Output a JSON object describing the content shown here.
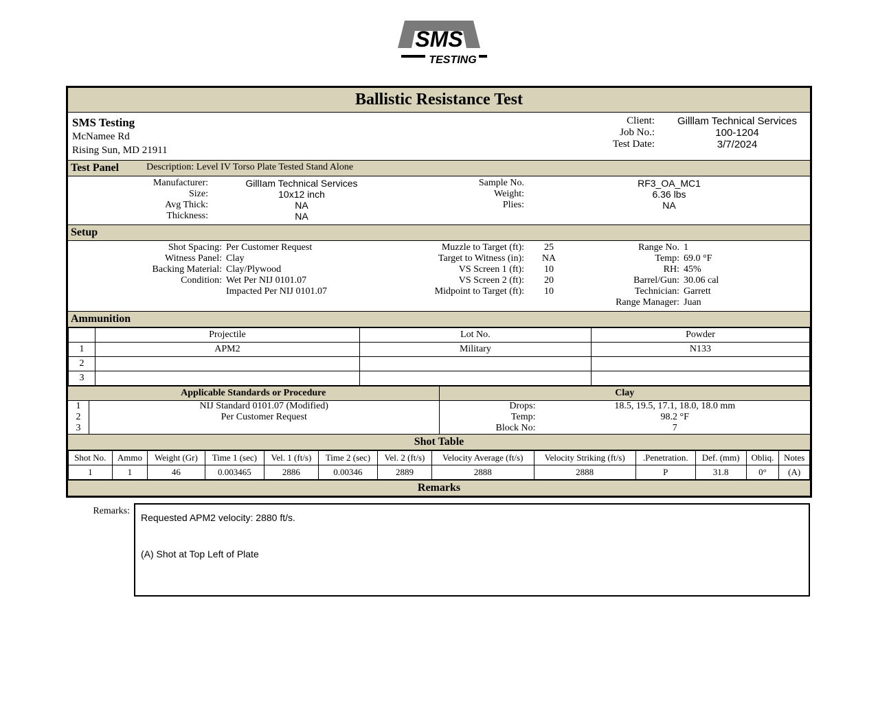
{
  "title": "Ballistic Resistance Test",
  "logo_text_top": "SMS",
  "logo_text_bottom": "TESTING",
  "header": {
    "company": "SMS Testing",
    "addr1": "McNamee Rd",
    "addr2": "Rising Sun, MD 21911",
    "client_lbl": "Client:",
    "client": "Gilllam Technical Services",
    "jobno_lbl": "Job No.:",
    "jobno": "100-1204",
    "date_lbl": "Test Date:",
    "date": "3/7/2024"
  },
  "test_panel": {
    "heading": "Test Panel",
    "desc_lbl": "Description:",
    "desc": "Level IV Torso Plate Tested Stand Alone",
    "rows": [
      {
        "l": "Manufacturer:",
        "lv": "GillIam Technical Services",
        "r": "Sample No.",
        "rv": "RF3_OA_MC1"
      },
      {
        "l": "Size:",
        "lv": "10x12 inch",
        "r": "Weight:",
        "rv": "6.36 lbs"
      },
      {
        "l": "Avg Thick:",
        "lv": "NA",
        "r": "Plies:",
        "rv": "NA"
      },
      {
        "l": "Thickness:",
        "lv": "NA",
        "r": "",
        "rv": ""
      }
    ]
  },
  "setup": {
    "heading": "Setup",
    "rows": [
      {
        "a": "Shot Spacing:",
        "av": "Per Customer Request",
        "b": "Muzzle to Target (ft):",
        "bv": "25",
        "c": "Range No.",
        "cv": "1"
      },
      {
        "a": "Witness Panel:",
        "av": "Clay",
        "b": "Target to Witness (in):",
        "bv": "NA",
        "c": "Temp:",
        "cv": "69.0 °F"
      },
      {
        "a": "Backing Material:",
        "av": "Clay/Plywood",
        "b": "VS Screen 1 (ft):",
        "bv": "10",
        "c": "RH:",
        "cv": "45%"
      },
      {
        "a": "Condition:",
        "av": "Wet Per NIJ 0101.07",
        "b": "VS Screen 2 (ft):",
        "bv": "20",
        "c": "Barrel/Gun:",
        "cv": "30.06 cal"
      },
      {
        "a": "",
        "av": "Impacted Per NIJ 0101.07",
        "b": "Midpoint to Target (ft):",
        "bv": "10",
        "c": "Technician:",
        "cv": "Garrett"
      },
      {
        "a": "",
        "av": "",
        "b": "",
        "bv": "",
        "c": "Range Manager:",
        "cv": "Juan"
      }
    ]
  },
  "ammo": {
    "heading": "Ammunition",
    "cols": [
      "Projectile",
      "Lot No.",
      "Powder"
    ],
    "rows": [
      {
        "n": "1",
        "p": "APM2",
        "l": "Military",
        "pw": "N133"
      },
      {
        "n": "2",
        "p": "",
        "l": "",
        "pw": ""
      },
      {
        "n": "3",
        "p": "",
        "l": "",
        "pw": ""
      }
    ]
  },
  "standards": {
    "heading": "Applicable Standards or Procedure",
    "rows": [
      {
        "n": "1",
        "t": "NIJ Standard 0101.07 (Modified)"
      },
      {
        "n": "2",
        "t": "Per Customer Request"
      },
      {
        "n": "3",
        "t": ""
      }
    ]
  },
  "clay": {
    "heading": "Clay",
    "rows": [
      {
        "l": "Drops:",
        "v": "18.5, 19.5, 17.1, 18.0, 18.0 mm"
      },
      {
        "l": "Temp:",
        "v": "98.2 °F"
      },
      {
        "l": "Block No:",
        "v": "7"
      }
    ]
  },
  "shot": {
    "heading": "Shot Table",
    "cols": [
      "Shot No.",
      "Ammo",
      "Weight (Gr)",
      "Time 1 (sec)",
      "Vel. 1 (ft/s)",
      "Time 2 (sec)",
      "Vel. 2 (ft/s)",
      "Velocity Average (ft/s)",
      "Velocity Striking (ft/s)",
      ".Penetration.",
      "Def. (mm)",
      "Obliq.",
      "Notes"
    ],
    "rows": [
      [
        "1",
        "1",
        "46",
        "0.003465",
        "2886",
        "0.00346",
        "2889",
        "2888",
        "2888",
        "P",
        "31.8",
        "0°",
        "(A)"
      ]
    ]
  },
  "remarks": {
    "heading": "Remarks",
    "label": "Remarks:",
    "line1": "Requested APM2  velocity: 2880 ft/s.",
    "line2": "(A) Shot at Top Left of Plate"
  },
  "colors": {
    "band": "#d8d2b8",
    "border": "#000000"
  }
}
